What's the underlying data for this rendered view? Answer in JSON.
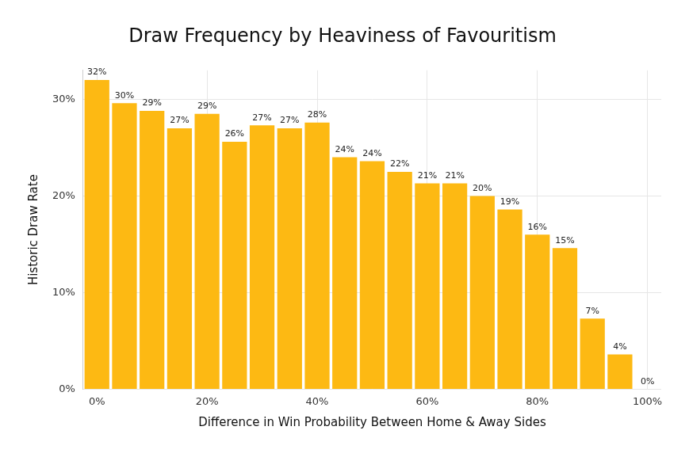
{
  "chart_data": {
    "type": "bar",
    "title": "Draw Frequency by Heaviness of Favouritism",
    "x_label": "Difference in Win Probability Between Home & Away Sides",
    "y_label": "Historic Draw Rate",
    "categories": [
      "0%",
      null,
      null,
      null,
      "20%",
      null,
      null,
      null,
      "40%",
      null,
      null,
      null,
      "60%",
      null,
      null,
      null,
      "80%",
      null,
      null,
      null,
      "100%"
    ],
    "values": [
      32.0,
      29.6,
      28.8,
      27.0,
      28.5,
      25.6,
      27.3,
      27.0,
      27.6,
      24.0,
      23.6,
      22.5,
      21.3,
      21.3,
      20.0,
      18.6,
      16.0,
      14.6,
      7.3,
      3.6,
      0
    ],
    "value_labels": [
      "32%",
      "30%",
      "29%",
      "27%",
      "29%",
      "26%",
      "27%",
      "27%",
      "28%",
      "24%",
      "24%",
      "22%",
      "21%",
      "21%",
      "20%",
      "19%",
      "16%",
      "15%",
      "7%",
      "4%",
      "0%"
    ],
    "color": "#fdb913",
    "ylim": [
      0,
      33
    ],
    "yticks": [
      {
        "value": 0,
        "label": "0%"
      },
      {
        "value": 10,
        "label": "10%"
      },
      {
        "value": 20,
        "label": "20%"
      },
      {
        "value": 30,
        "label": "30%"
      }
    ],
    "grid": true,
    "data_labels": true
  }
}
